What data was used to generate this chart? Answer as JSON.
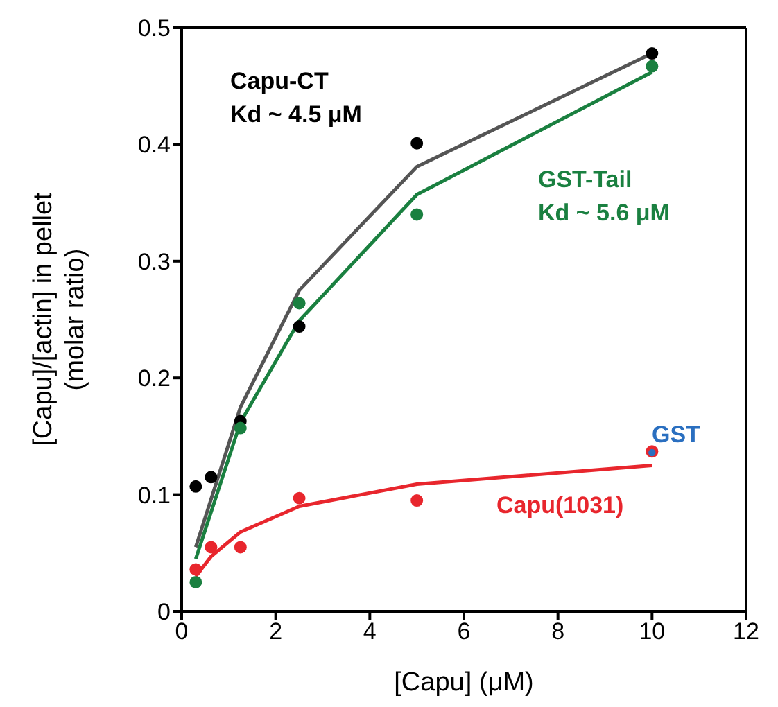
{
  "chart_data": {
    "type": "scatter",
    "xlabel": "[Capu] (μM)",
    "ylabel": "[Capu]/[actin] in pellet\n(molar ratio)",
    "xlim": [
      0,
      12
    ],
    "xticks": [
      0,
      2,
      4,
      6,
      8,
      10,
      12
    ],
    "ylim": [
      0,
      0.5
    ],
    "yticks": [
      0,
      0.1,
      0.2,
      0.3,
      0.4,
      0.5
    ],
    "legend": false,
    "marker": "circle",
    "annotations": [
      "Kd ~ 4.5 μM",
      "Kd ~ 5.6 μM"
    ],
    "series": [
      {
        "name": "Capu-CT",
        "color": "#000000",
        "x": [
          0.3,
          0.625,
          1.25,
          2.5,
          5,
          10
        ],
        "values": [
          0.107,
          0.115,
          0.163,
          0.244,
          0.401,
          0.478
        ]
      },
      {
        "name": "GST-Tail",
        "color": "#1a8040",
        "x": [
          0.3,
          1.25,
          2.5,
          5,
          10
        ],
        "values": [
          0.025,
          0.157,
          0.264,
          0.34,
          0.467
        ]
      },
      {
        "name": "Capu(1031)",
        "color": "#e8262d",
        "x": [
          0.3,
          0.625,
          1.25,
          2.5,
          5,
          10
        ],
        "values": [
          0.036,
          0.055,
          0.055,
          0.097,
          0.095,
          0.137
        ]
      },
      {
        "name": "GST",
        "color": "#2a6fc0",
        "x": [
          10
        ],
        "values": [
          0.136
        ]
      },
      {
        "type": "line",
        "color": "#555555",
        "marker": "none",
        "x": [
          0.3,
          1.25,
          2.5,
          5,
          10
        ],
        "values": [
          0.055,
          0.175,
          0.275,
          0.381,
          0.478
        ]
      },
      {
        "type": "line",
        "color": "#1a8040",
        "marker": "none",
        "x": [
          0.3,
          1.25,
          2.5,
          5,
          10
        ],
        "values": [
          0.045,
          0.162,
          0.249,
          0.357,
          0.462
        ]
      },
      {
        "type": "line",
        "color": "#e8262d",
        "marker": "none",
        "x": [
          0.3,
          0.625,
          1.25,
          2.5,
          5,
          10
        ],
        "values": [
          0.03,
          0.047,
          0.068,
          0.09,
          0.109,
          0.125
        ]
      }
    ]
  }
}
